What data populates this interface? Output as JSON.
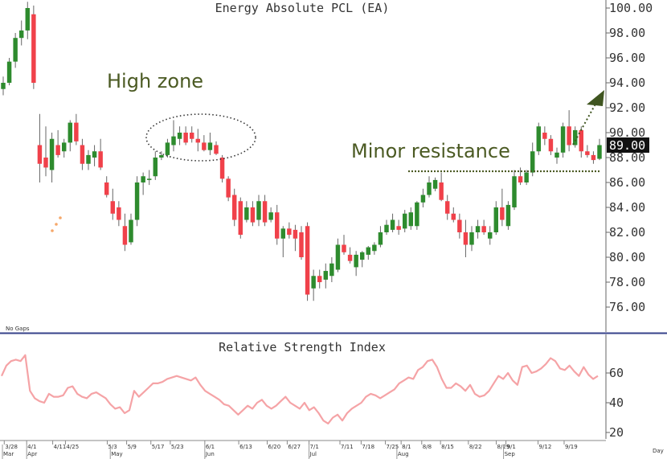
{
  "chart_data": [
    {
      "type": "candlestick",
      "title": "Energy Absolute PCL (EA)",
      "ylim": [
        74,
        101
      ],
      "y_ticks": [
        "100.00",
        "98.00",
        "96.00",
        "94.00",
        "92.00",
        "90.00",
        "88.00",
        "86.00",
        "84.00",
        "82.00",
        "80.00",
        "78.00",
        "76.00"
      ],
      "last_price_label": "89.00",
      "corner_note": "No Gaps",
      "x_axis_label": "Day",
      "date_labels": [
        "3/28",
        "4/1",
        "4/11",
        "4/25",
        "5/3",
        "5/9",
        "5/17",
        "5/23",
        "6/1",
        "6/13",
        "6/20",
        "6/27",
        "7/1",
        "7/11",
        "7/18",
        "7/25",
        "8/1",
        "8/8",
        "8/15",
        "8/22",
        "8/29",
        "9/1",
        "9/12",
        "9/19"
      ],
      "month_labels": [
        "Mar",
        "Apr",
        "May",
        "Jun",
        "Jul",
        "Aug",
        "Sep"
      ],
      "annotations": [
        "High zone",
        "Minor resistance"
      ],
      "resistance_level": 86.9,
      "up_color": "#2e8b2e",
      "down_color": "#f0414a",
      "candles": [
        {
          "o": 93.5,
          "h": 94.5,
          "l": 93.0,
          "c": 94.0
        },
        {
          "o": 94.0,
          "h": 96.0,
          "l": 93.8,
          "c": 95.7
        },
        {
          "o": 95.7,
          "h": 98.0,
          "l": 95.2,
          "c": 97.6
        },
        {
          "o": 97.6,
          "h": 99.0,
          "l": 97.0,
          "c": 98.2
        },
        {
          "o": 98.2,
          "h": 100.5,
          "l": 97.5,
          "c": 100.0
        },
        {
          "o": 99.5,
          "h": 100.2,
          "l": 93.5,
          "c": 94.0
        },
        {
          "o": 89.0,
          "h": 91.5,
          "l": 86.0,
          "c": 87.5
        },
        {
          "o": 88.0,
          "h": 90.5,
          "l": 86.5,
          "c": 87.2
        },
        {
          "o": 87.0,
          "h": 90.0,
          "l": 86.0,
          "c": 89.5
        },
        {
          "o": 89.0,
          "h": 90.2,
          "l": 88.0,
          "c": 88.2
        },
        {
          "o": 88.5,
          "h": 89.5,
          "l": 88.0,
          "c": 89.2
        },
        {
          "o": 89.2,
          "h": 91.0,
          "l": 88.5,
          "c": 90.8
        },
        {
          "o": 90.8,
          "h": 91.5,
          "l": 89.0,
          "c": 89.3
        },
        {
          "o": 89.0,
          "h": 89.5,
          "l": 87.0,
          "c": 87.5
        },
        {
          "o": 87.5,
          "h": 88.6,
          "l": 87.0,
          "c": 88.2
        },
        {
          "o": 88.0,
          "h": 89.0,
          "l": 87.3,
          "c": 88.5
        },
        {
          "o": 88.5,
          "h": 89.5,
          "l": 87.0,
          "c": 87.2
        },
        {
          "o": 86.0,
          "h": 86.5,
          "l": 84.8,
          "c": 85.0
        },
        {
          "o": 84.5,
          "h": 85.5,
          "l": 83.0,
          "c": 83.5
        },
        {
          "o": 84.0,
          "h": 84.5,
          "l": 82.5,
          "c": 83.0
        },
        {
          "o": 82.5,
          "h": 83.5,
          "l": 80.5,
          "c": 81.0
        },
        {
          "o": 81.2,
          "h": 83.5,
          "l": 81.0,
          "c": 83.0
        },
        {
          "o": 83.0,
          "h": 86.5,
          "l": 82.5,
          "c": 86.0
        },
        {
          "o": 86.0,
          "h": 86.8,
          "l": 85.0,
          "c": 86.5
        },
        {
          "o": 86.2,
          "h": 87.0,
          "l": 85.8,
          "c": 86.3
        },
        {
          "o": 86.5,
          "h": 88.5,
          "l": 86.2,
          "c": 88.0
        },
        {
          "o": 88.0,
          "h": 88.5,
          "l": 87.8,
          "c": 88.2
        },
        {
          "o": 88.2,
          "h": 89.5,
          "l": 88.0,
          "c": 89.2
        },
        {
          "o": 89.0,
          "h": 91.0,
          "l": 88.5,
          "c": 89.7
        },
        {
          "o": 89.5,
          "h": 90.5,
          "l": 89.0,
          "c": 90.0
        },
        {
          "o": 90.0,
          "h": 90.5,
          "l": 89.0,
          "c": 89.2
        },
        {
          "o": 90.0,
          "h": 90.5,
          "l": 89.2,
          "c": 89.5
        },
        {
          "o": 89.5,
          "h": 90.3,
          "l": 88.5,
          "c": 89.2
        },
        {
          "o": 89.2,
          "h": 89.8,
          "l": 88.5,
          "c": 88.6
        },
        {
          "o": 88.6,
          "h": 90.0,
          "l": 88.2,
          "c": 89.2
        },
        {
          "o": 89.0,
          "h": 89.3,
          "l": 88.2,
          "c": 88.3
        },
        {
          "o": 88.0,
          "h": 88.2,
          "l": 86.0,
          "c": 86.3
        },
        {
          "o": 86.3,
          "h": 86.5,
          "l": 84.5,
          "c": 84.8
        },
        {
          "o": 85.0,
          "h": 85.5,
          "l": 82.5,
          "c": 83.0
        },
        {
          "o": 84.5,
          "h": 84.8,
          "l": 81.5,
          "c": 81.8
        },
        {
          "o": 83.0,
          "h": 84.5,
          "l": 82.8,
          "c": 84.0
        },
        {
          "o": 84.0,
          "h": 84.5,
          "l": 82.5,
          "c": 82.8
        },
        {
          "o": 83.0,
          "h": 85.0,
          "l": 82.5,
          "c": 84.5
        },
        {
          "o": 84.5,
          "h": 85.0,
          "l": 82.5,
          "c": 82.8
        },
        {
          "o": 83.0,
          "h": 84.0,
          "l": 82.8,
          "c": 83.6
        },
        {
          "o": 83.6,
          "h": 84.2,
          "l": 81.0,
          "c": 81.5
        },
        {
          "o": 81.5,
          "h": 82.5,
          "l": 80.0,
          "c": 82.3
        },
        {
          "o": 82.3,
          "h": 82.8,
          "l": 81.5,
          "c": 81.8
        },
        {
          "o": 82.2,
          "h": 82.6,
          "l": 80.5,
          "c": 81.5
        },
        {
          "o": 82.0,
          "h": 82.5,
          "l": 79.8,
          "c": 80.0
        },
        {
          "o": 82.5,
          "h": 82.8,
          "l": 76.5,
          "c": 77.0
        },
        {
          "o": 77.5,
          "h": 79.0,
          "l": 76.5,
          "c": 78.5
        },
        {
          "o": 78.5,
          "h": 79.0,
          "l": 77.5,
          "c": 78.0
        },
        {
          "o": 78.2,
          "h": 79.5,
          "l": 77.5,
          "c": 78.9
        },
        {
          "o": 78.5,
          "h": 80.0,
          "l": 78.0,
          "c": 79.5
        },
        {
          "o": 79.0,
          "h": 81.5,
          "l": 78.8,
          "c": 81.0
        },
        {
          "o": 81.0,
          "h": 81.8,
          "l": 80.2,
          "c": 80.4
        },
        {
          "o": 80.2,
          "h": 80.8,
          "l": 79.5,
          "c": 79.7
        },
        {
          "o": 79.2,
          "h": 80.5,
          "l": 78.5,
          "c": 80.2
        },
        {
          "o": 79.8,
          "h": 80.5,
          "l": 79.2,
          "c": 80.4
        },
        {
          "o": 80.2,
          "h": 80.9,
          "l": 79.8,
          "c": 80.8
        },
        {
          "o": 80.5,
          "h": 81.2,
          "l": 80.2,
          "c": 81.0
        },
        {
          "o": 81.0,
          "h": 82.5,
          "l": 80.8,
          "c": 82.0
        },
        {
          "o": 82.0,
          "h": 83.0,
          "l": 81.8,
          "c": 82.6
        },
        {
          "o": 82.2,
          "h": 83.5,
          "l": 82.0,
          "c": 83.0
        },
        {
          "o": 82.5,
          "h": 83.0,
          "l": 81.8,
          "c": 82.2
        },
        {
          "o": 82.3,
          "h": 83.8,
          "l": 82.0,
          "c": 83.5
        },
        {
          "o": 82.5,
          "h": 84.0,
          "l": 82.2,
          "c": 83.6
        },
        {
          "o": 82.5,
          "h": 84.5,
          "l": 82.2,
          "c": 84.4
        },
        {
          "o": 84.4,
          "h": 85.5,
          "l": 84.0,
          "c": 85.0
        },
        {
          "o": 85.0,
          "h": 86.5,
          "l": 84.8,
          "c": 86.0
        },
        {
          "o": 85.5,
          "h": 86.4,
          "l": 85.3,
          "c": 86.2
        },
        {
          "o": 86.0,
          "h": 86.8,
          "l": 84.5,
          "c": 84.6
        },
        {
          "o": 84.5,
          "h": 85.0,
          "l": 83.0,
          "c": 83.5
        },
        {
          "o": 83.5,
          "h": 84.0,
          "l": 82.8,
          "c": 83.0
        },
        {
          "o": 83.0,
          "h": 83.5,
          "l": 81.5,
          "c": 82.0
        },
        {
          "o": 82.0,
          "h": 83.0,
          "l": 80.0,
          "c": 81.0
        },
        {
          "o": 81.0,
          "h": 82.5,
          "l": 80.5,
          "c": 82.0
        },
        {
          "o": 82.0,
          "h": 83.0,
          "l": 81.5,
          "c": 82.5
        },
        {
          "o": 82.5,
          "h": 83.0,
          "l": 81.8,
          "c": 82.0
        },
        {
          "o": 81.5,
          "h": 82.5,
          "l": 81.0,
          "c": 82.0
        },
        {
          "o": 82.0,
          "h": 84.5,
          "l": 81.8,
          "c": 84.0
        },
        {
          "o": 84.0,
          "h": 85.5,
          "l": 82.5,
          "c": 83.0
        },
        {
          "o": 82.5,
          "h": 84.5,
          "l": 82.2,
          "c": 84.2
        },
        {
          "o": 84.0,
          "h": 87.0,
          "l": 83.8,
          "c": 86.5
        },
        {
          "o": 86.5,
          "h": 87.2,
          "l": 85.8,
          "c": 86.0
        },
        {
          "o": 86.0,
          "h": 87.0,
          "l": 85.8,
          "c": 86.8
        },
        {
          "o": 86.8,
          "h": 89.2,
          "l": 86.5,
          "c": 88.5
        },
        {
          "o": 88.5,
          "h": 90.8,
          "l": 88.2,
          "c": 90.5
        },
        {
          "o": 90.0,
          "h": 90.5,
          "l": 89.0,
          "c": 89.5
        },
        {
          "o": 89.5,
          "h": 89.8,
          "l": 88.2,
          "c": 88.5
        },
        {
          "o": 88.0,
          "h": 88.8,
          "l": 87.5,
          "c": 88.4
        },
        {
          "o": 88.4,
          "h": 90.8,
          "l": 88.0,
          "c": 90.5
        },
        {
          "o": 90.5,
          "h": 91.8,
          "l": 88.5,
          "c": 89.0
        },
        {
          "o": 89.0,
          "h": 90.5,
          "l": 88.8,
          "c": 90.2
        },
        {
          "o": 90.2,
          "h": 90.5,
          "l": 88.0,
          "c": 88.5
        },
        {
          "o": 88.5,
          "h": 89.0,
          "l": 88.0,
          "c": 88.2
        },
        {
          "o": 88.2,
          "h": 88.5,
          "l": 87.5,
          "c": 87.8
        },
        {
          "o": 87.9,
          "h": 89.5,
          "l": 87.8,
          "c": 89.0
        }
      ]
    },
    {
      "type": "line",
      "title": "Relative Strength Index",
      "ylim": [
        15,
        75
      ],
      "y_ticks": [
        "60",
        "40",
        "20"
      ],
      "line_color": "#f5a3a6",
      "series": [
        {
          "values": [
            58,
            65,
            68,
            69,
            68,
            72,
            48,
            43,
            41,
            40,
            46,
            44,
            44,
            45,
            50,
            51,
            46,
            44,
            43,
            46,
            47,
            45,
            43,
            39,
            36,
            37,
            33,
            35,
            48,
            44,
            47,
            50,
            53,
            53,
            54,
            56,
            57,
            58,
            57,
            56,
            55,
            57,
            52,
            48,
            46,
            44,
            42,
            39,
            38,
            35,
            32,
            35,
            38,
            36,
            40,
            42,
            38,
            36,
            38,
            41,
            44,
            40,
            38,
            36,
            40,
            35,
            37,
            33,
            28,
            26,
            30,
            32,
            28,
            33,
            36,
            38,
            40,
            44,
            46,
            45,
            43,
            45,
            47,
            49,
            53,
            55,
            57,
            56,
            62,
            64,
            68,
            69,
            64,
            56,
            50,
            50,
            53,
            51,
            48,
            52,
            46,
            44,
            45,
            48,
            53,
            58,
            56,
            60,
            55,
            52,
            64,
            65,
            60,
            61,
            63,
            66,
            70,
            68,
            63,
            62,
            65,
            61,
            58,
            64,
            59,
            56,
            58
          ]
        }
      ]
    }
  ]
}
